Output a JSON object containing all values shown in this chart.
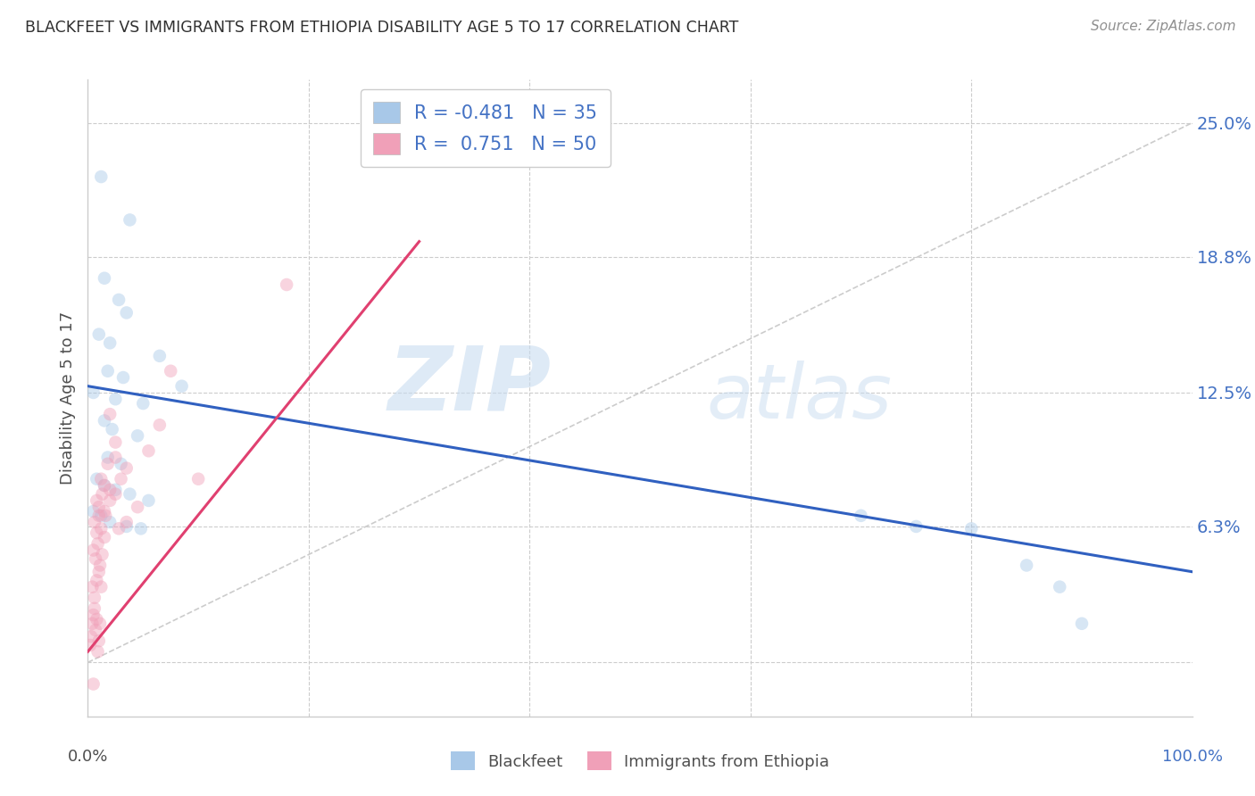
{
  "title": "BLACKFEET VS IMMIGRANTS FROM ETHIOPIA DISABILITY AGE 5 TO 17 CORRELATION CHART",
  "source": "Source: ZipAtlas.com",
  "ylabel": "Disability Age 5 to 17",
  "ytick_values": [
    0,
    6.3,
    12.5,
    18.8,
    25.0
  ],
  "ytick_labels_right": [
    "",
    "6.3%",
    "12.5%",
    "18.8%",
    "25.0%"
  ],
  "xlim": [
    0,
    100
  ],
  "ylim": [
    -2.5,
    27
  ],
  "watermark_zip": "ZIP",
  "watermark_atlas": "atlas",
  "legend_blue_r": "R = -0.481",
  "legend_blue_n": "N = 35",
  "legend_pink_r": "R =  0.751",
  "legend_pink_n": "N = 50",
  "blue_color": "#A8C8E8",
  "pink_color": "#F0A0B8",
  "blue_line_color": "#3060C0",
  "pink_line_color": "#E04070",
  "title_color": "#303030",
  "ylabel_color": "#505050",
  "right_tick_color": "#4472C4",
  "source_color": "#909090",
  "grid_color": "#CCCCCC",
  "blue_scatter": [
    [
      1.2,
      22.5
    ],
    [
      3.8,
      20.5
    ],
    [
      1.5,
      17.8
    ],
    [
      2.8,
      16.8
    ],
    [
      3.5,
      16.2
    ],
    [
      1.0,
      15.2
    ],
    [
      2.0,
      14.8
    ],
    [
      6.5,
      14.2
    ],
    [
      1.8,
      13.5
    ],
    [
      3.2,
      13.2
    ],
    [
      8.5,
      12.8
    ],
    [
      0.5,
      12.5
    ],
    [
      2.5,
      12.2
    ],
    [
      5.0,
      12.0
    ],
    [
      1.5,
      11.2
    ],
    [
      2.2,
      10.8
    ],
    [
      4.5,
      10.5
    ],
    [
      1.8,
      9.5
    ],
    [
      3.0,
      9.2
    ],
    [
      0.8,
      8.5
    ],
    [
      1.5,
      8.2
    ],
    [
      2.5,
      8.0
    ],
    [
      3.8,
      7.8
    ],
    [
      5.5,
      7.5
    ],
    [
      0.5,
      7.0
    ],
    [
      1.2,
      6.8
    ],
    [
      2.0,
      6.5
    ],
    [
      3.5,
      6.3
    ],
    [
      4.8,
      6.2
    ],
    [
      70.0,
      6.8
    ],
    [
      75.0,
      6.3
    ],
    [
      80.0,
      6.2
    ],
    [
      85.0,
      4.5
    ],
    [
      88.0,
      3.5
    ],
    [
      90.0,
      1.8
    ]
  ],
  "pink_scatter": [
    [
      0.2,
      0.8
    ],
    [
      0.3,
      1.2
    ],
    [
      0.4,
      1.8
    ],
    [
      0.5,
      2.2
    ],
    [
      0.6,
      2.5
    ],
    [
      0.7,
      1.5
    ],
    [
      0.8,
      2.0
    ],
    [
      0.9,
      0.5
    ],
    [
      1.0,
      1.0
    ],
    [
      1.1,
      1.8
    ],
    [
      0.4,
      3.5
    ],
    [
      0.6,
      3.0
    ],
    [
      0.8,
      3.8
    ],
    [
      1.0,
      4.2
    ],
    [
      1.2,
      3.5
    ],
    [
      0.5,
      5.2
    ],
    [
      0.7,
      4.8
    ],
    [
      0.9,
      5.5
    ],
    [
      1.1,
      4.5
    ],
    [
      1.3,
      5.0
    ],
    [
      0.6,
      6.5
    ],
    [
      0.8,
      6.0
    ],
    [
      1.0,
      6.8
    ],
    [
      1.2,
      6.2
    ],
    [
      1.5,
      7.0
    ],
    [
      0.8,
      7.5
    ],
    [
      1.0,
      7.2
    ],
    [
      1.3,
      7.8
    ],
    [
      1.6,
      6.8
    ],
    [
      2.0,
      7.5
    ],
    [
      1.2,
      8.5
    ],
    [
      1.5,
      8.2
    ],
    [
      2.0,
      8.0
    ],
    [
      2.5,
      7.8
    ],
    [
      3.0,
      8.5
    ],
    [
      1.8,
      9.2
    ],
    [
      2.5,
      9.5
    ],
    [
      3.5,
      9.0
    ],
    [
      2.0,
      11.5
    ],
    [
      6.5,
      11.0
    ],
    [
      7.5,
      13.5
    ],
    [
      0.5,
      -1.0
    ],
    [
      1.5,
      5.8
    ],
    [
      2.8,
      6.2
    ],
    [
      3.5,
      6.5
    ],
    [
      4.5,
      7.2
    ],
    [
      10.0,
      8.5
    ],
    [
      18.0,
      17.5
    ],
    [
      5.5,
      9.8
    ],
    [
      2.5,
      10.2
    ]
  ],
  "blue_line_x": [
    0,
    100
  ],
  "blue_line_y": [
    12.8,
    4.2
  ],
  "pink_line_x": [
    0,
    30
  ],
  "pink_line_y": [
    0.5,
    19.5
  ],
  "diag_line_x": [
    0,
    100
  ],
  "diag_line_y": [
    0,
    25
  ],
  "marker_size": 110,
  "marker_alpha": 0.45,
  "figsize": [
    14.06,
    8.92
  ],
  "dpi": 100
}
